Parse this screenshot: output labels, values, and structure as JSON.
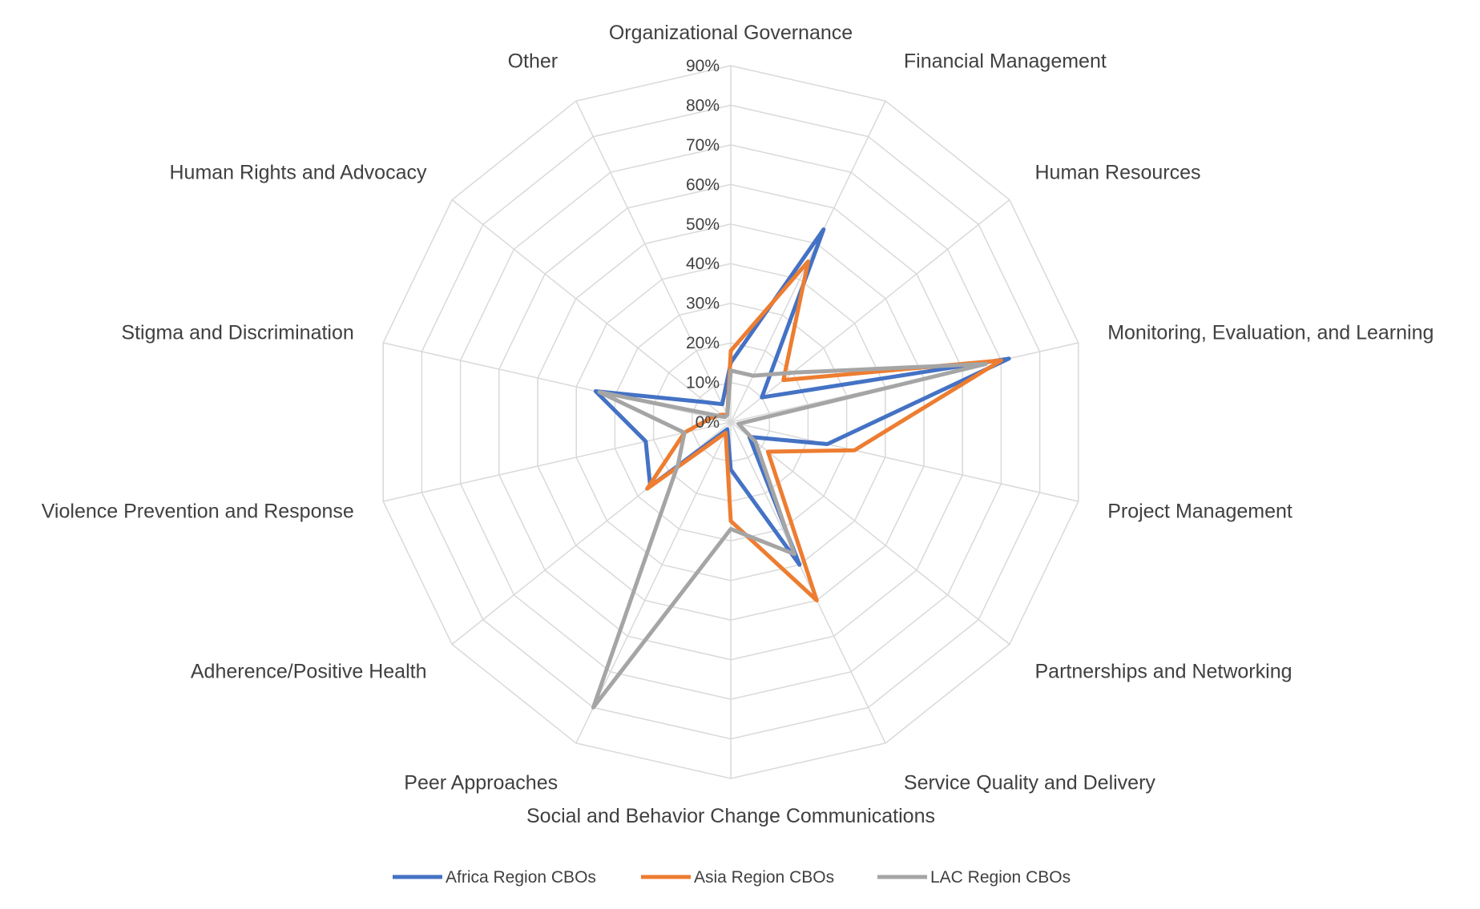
{
  "chart_data": {
    "type": "radar",
    "categories": [
      "Organizational Governance",
      "Financial Management",
      "Human Resources",
      "Monitoring, Evaluation, and Learning",
      "Project Management",
      "Partnerships and Networking",
      "Service Quality and Delivery",
      "Social and Behavior Change Communications",
      "Peer Approaches",
      "Adherence/Positive Health",
      "Violence Prevention and Response",
      "Stigma and Discrimination",
      "Human Rights and Advocacy",
      "Other"
    ],
    "series": [
      {
        "name": "Africa Region CBOs",
        "color": "#4472C4",
        "values": [
          15,
          54,
          10,
          72,
          25,
          6,
          40,
          12,
          2,
          26,
          22,
          35,
          8,
          5
        ]
      },
      {
        "name": "Asia Region CBOs",
        "color": "#ED7D31",
        "values": [
          18,
          45,
          17,
          70,
          32,
          12,
          50,
          25,
          3,
          27,
          12,
          5,
          3,
          2
        ]
      },
      {
        "name": "LAC Region CBOs",
        "color": "#A5A5A5",
        "values": [
          13,
          13,
          20,
          66,
          2,
          8,
          37,
          27,
          80,
          17,
          12,
          34,
          2,
          2
        ]
      }
    ],
    "rlim": [
      0,
      90
    ],
    "tick_labels": [
      "0%",
      "10%",
      "20%",
      "30%",
      "40%",
      "50%",
      "60%",
      "70%",
      "80%",
      "90%"
    ],
    "grid": true,
    "legend_position": "bottom"
  }
}
